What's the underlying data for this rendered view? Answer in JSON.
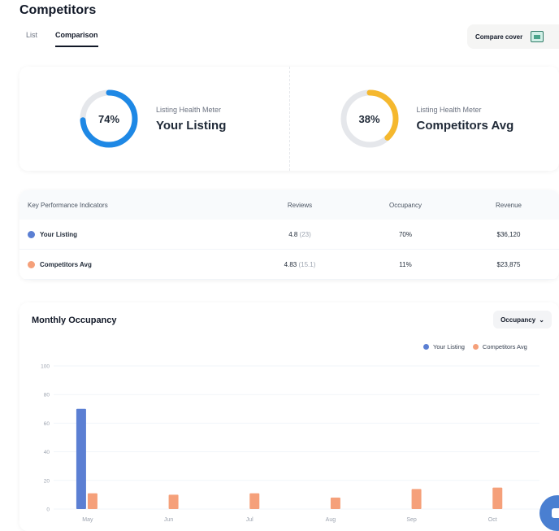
{
  "header": {
    "title": "Competitors"
  },
  "tabs": [
    {
      "label": "List",
      "active": false
    },
    {
      "label": "Comparison",
      "active": true
    }
  ],
  "compare_button": {
    "label": "Compare cover"
  },
  "health": {
    "your_listing": {
      "percent_label": "74%",
      "percent": 74,
      "subtitle": "Listing Health Meter",
      "name": "Your Listing",
      "color": "#1e88e5"
    },
    "competitors": {
      "percent_label": "38%",
      "percent": 38,
      "subtitle": "Listing Health Meter",
      "name": "Competitors Avg",
      "color": "#f5b82e"
    }
  },
  "kpi": {
    "headers": [
      "Key Performance Indicators",
      "Reviews",
      "Occupancy",
      "Revenue"
    ],
    "rows": [
      {
        "name": "Your Listing",
        "color": "#5b7fd3",
        "rating": "4.8",
        "count": "(23)",
        "occupancy": "70%",
        "revenue": "$36,120"
      },
      {
        "name": "Competitors Avg",
        "color": "#f5a07a",
        "rating": "4.83",
        "count": "(15.1)",
        "occupancy": "11%",
        "revenue": "$23,875"
      }
    ]
  },
  "chart": {
    "title": "Monthly Occupancy",
    "dropdown_label": "Occupancy",
    "legend": [
      {
        "label": "Your Listing",
        "color": "#5b7fd3"
      },
      {
        "label": "Competitors Avg",
        "color": "#f5a07a"
      }
    ]
  },
  "chart_data": {
    "type": "bar",
    "categories": [
      "May",
      "Jun",
      "Jul",
      "Aug",
      "Sep",
      "Oct"
    ],
    "series": [
      {
        "name": "Your Listing",
        "values": [
          70,
          0,
          0,
          0,
          0,
          0
        ]
      },
      {
        "name": "Competitors Avg",
        "values": [
          11,
          10,
          11,
          8,
          14,
          15
        ]
      }
    ],
    "yticks": [
      0,
      20,
      40,
      60,
      80,
      100
    ],
    "ylim": [
      0,
      100
    ],
    "grid": true,
    "legend_position": "top-right"
  }
}
